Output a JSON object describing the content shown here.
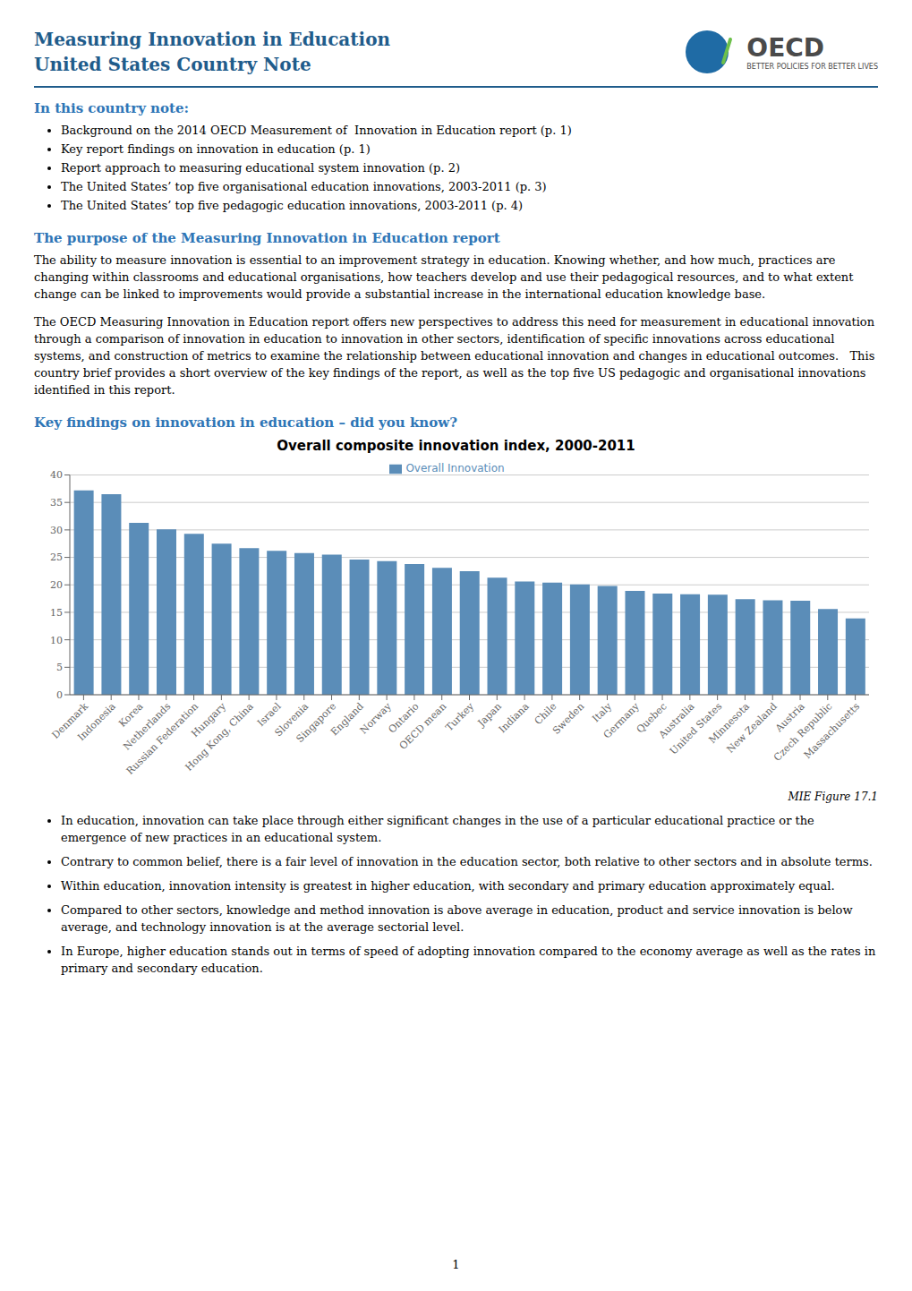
{
  "chart_data": {
    "type": "bar",
    "title": "Overall composite innovation index, 2000-2011",
    "categories": [
      "Denmark",
      "Indonesia",
      "Korea",
      "Netherlands",
      "Russian Federation",
      "Hungary",
      "Hong Kong, China",
      "Israel",
      "Slovenia",
      "Singapore",
      "England",
      "Norway",
      "Ontario",
      "OECD mean",
      "Turkey",
      "Japan",
      "Indiana",
      "Chile",
      "Sweden",
      "Italy",
      "Germany",
      "Quebec",
      "Australia",
      "United States",
      "Minnesota",
      "New Zealand",
      "Austria",
      "Czech Republic",
      "Massachusetts"
    ],
    "series": [
      {
        "name": "Overall Innovation",
        "color": "#5B8DB8",
        "values": [
          37.2,
          36.5,
          31.3,
          30.1,
          29.3,
          27.5,
          26.7,
          26.2,
          25.8,
          25.5,
          24.6,
          24.3,
          23.8,
          23.1,
          22.5,
          21.3,
          20.6,
          20.4,
          20.1,
          19.8,
          18.9,
          18.4,
          18.3,
          18.2,
          17.4,
          17.2,
          17.1,
          15.6,
          13.9
        ]
      }
    ],
    "ylim": [
      0,
      40
    ],
    "yticks": [
      0,
      5,
      10,
      15,
      20,
      25,
      30,
      35,
      40
    ],
    "grid": true,
    "legend": "top",
    "annotations": [
      "Measuring Innovation in Education",
      "United States Country Note",
      "OECD",
      "BETTER POLICIES FOR BETTER LIVES",
      "In this country note:",
      "Background on the 2014 OECD Measurement of  Innovation in Education report (p. 1)",
      "Key report findings on innovation in education (p. 1)",
      "Report approach to measuring educational system innovation (p. 2)",
      "The United States’ top five organisational education innovations, 2003-2011 (p. 3)",
      "The United States’ top five pedagogic education innovations, 2003-2011 (p. 4)",
      "The purpose of the Measuring Innovation in Education report",
      "The ability to measure innovation is essential to an improvement strategy in education. Knowing whether, and how much, practices are changing within classrooms and educational organisations, how teachers develop and use their pedagogical resources, and to what extent change can be linked to improvements would provide a substantial increase in the international education knowledge base.",
      "The OECD Measuring Innovation in Education report offers new perspectives to address this need for measurement in educational innovation through a comparison of innovation in education to innovation in other sectors, identification of specific innovations across educational systems, and construction of metrics to examine the relationship between educational innovation and changes in educational outcomes.   This country brief provides a short overview of the key findings of the report, as well as the top five US pedagogic and organisational innovations identified in this report.",
      "Key findings on innovation in education – did you know?",
      "MIE Figure 17.1",
      "In education, innovation can take place through either significant changes in the use of a particular educational practice or the emergence of new practices in an educational system.",
      "Contrary to common belief, there is a fair level of innovation in the education sector, both relative to other sectors and in absolute terms.",
      "Within education, innovation intensity is greatest in higher education, with secondary and primary education approximately equal.",
      "Compared to other sectors, knowledge and method innovation is above average in education, product and service innovation is below average, and technology innovation is at the average sectorial level.",
      "In Europe, higher education stands out in terms of speed of adopting innovation compared to the economy average as well as the rates in primary and secondary education.",
      "1"
    ]
  }
}
